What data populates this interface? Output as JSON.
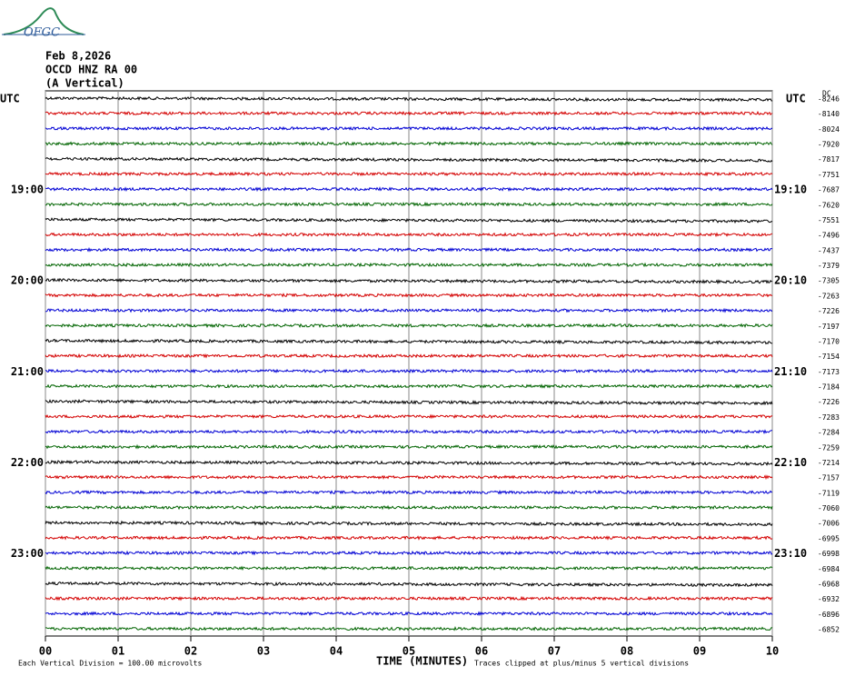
{
  "logo": "OFGC",
  "header": {
    "date": "Feb 8,2026",
    "station": "OCCD HNZ RA 00",
    "component": "(A Vertical)"
  },
  "chart_data": {
    "type": "helicorder",
    "xlabel": "TIME (MINUTES)",
    "xlim": [
      0,
      10
    ],
    "xticks": [
      {
        "value": 0,
        "label": "00"
      },
      {
        "value": 1,
        "label": "01"
      },
      {
        "value": 2,
        "label": "02"
      },
      {
        "value": 3,
        "label": "03"
      },
      {
        "value": 4,
        "label": "04"
      },
      {
        "value": 5,
        "label": "05"
      },
      {
        "value": 6,
        "label": "06"
      },
      {
        "value": 7,
        "label": "07"
      },
      {
        "value": 8,
        "label": "08"
      },
      {
        "value": 9,
        "label": "09"
      },
      {
        "value": 10,
        "label": "10"
      }
    ],
    "trace_colors": [
      "#000000",
      "#d40000",
      "#0000d4",
      "#006400"
    ],
    "dc_label": "DC",
    "left_labels": [
      "UTC",
      null,
      null,
      null,
      null,
      null,
      "19:00",
      null,
      null,
      null,
      null,
      null,
      "20:00",
      null,
      null,
      null,
      null,
      null,
      "21:00",
      null,
      null,
      null,
      null,
      null,
      "22:00",
      null,
      null,
      null,
      null,
      null,
      "23:00",
      null,
      null,
      null,
      null,
      null
    ],
    "right_labels": [
      "UTC",
      null,
      null,
      null,
      null,
      null,
      "19:10",
      null,
      null,
      null,
      null,
      null,
      "20:10",
      null,
      null,
      null,
      null,
      null,
      "21:10",
      null,
      null,
      null,
      null,
      null,
      "22:10",
      null,
      null,
      null,
      null,
      null,
      "23:10",
      null,
      null,
      null,
      null,
      null
    ],
    "dc_offsets": [
      -8246,
      -8140,
      -8024,
      -7920,
      -7817,
      -7751,
      -7687,
      -7620,
      -7551,
      -7496,
      -7437,
      -7379,
      -7305,
      -7263,
      -7226,
      -7197,
      -7170,
      -7154,
      -7173,
      -7184,
      -7226,
      -7283,
      -7284,
      -7259,
      -7214,
      -7157,
      -7119,
      -7060,
      -7006,
      -6995,
      -6998,
      -6984,
      -6968,
      -6932,
      -6896,
      -6852
    ],
    "notes": {
      "scale": "Each Vertical Division =  100.00 microvolts",
      "clip": "Traces clipped at plus/minus 5 vertical divisions"
    }
  }
}
